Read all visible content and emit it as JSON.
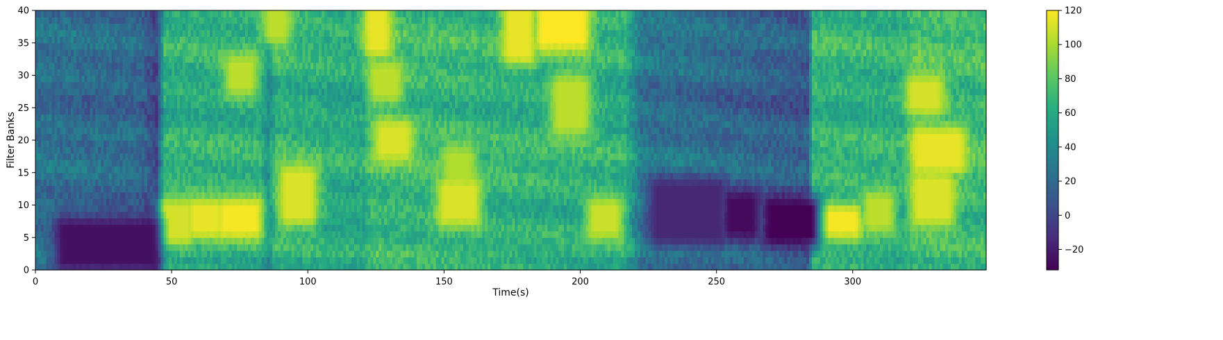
{
  "chart_data": [
    {
      "type": "heatmap",
      "title": "",
      "xlabel": "Time(s)",
      "ylabel": "Filter Banks",
      "xlim": [
        0,
        349
      ],
      "ylim": [
        0,
        40
      ],
      "x_ticks": [
        0,
        50,
        100,
        150,
        200,
        250,
        300
      ],
      "y_ticks": [
        0,
        5,
        10,
        15,
        20,
        25,
        30,
        35,
        40
      ],
      "n_frames": 349,
      "n_filters": 40,
      "colormap": "viridis",
      "value_range": [
        -32,
        120
      ],
      "frame_energy_profile": [
        {
          "t": 0,
          "level": -0.3
        },
        {
          "t": 38,
          "level": -0.4
        },
        {
          "t": 44,
          "level": -0.9
        },
        {
          "t": 47,
          "level": 0.7
        },
        {
          "t": 82,
          "level": 0.7
        },
        {
          "t": 85,
          "level": 0.2
        },
        {
          "t": 88,
          "level": 0.8
        },
        {
          "t": 120,
          "level": 0.6
        },
        {
          "t": 123,
          "level": 0.9
        },
        {
          "t": 216,
          "level": 0.7
        },
        {
          "t": 222,
          "level": -0.2
        },
        {
          "t": 283,
          "level": -0.6
        },
        {
          "t": 285,
          "level": 0.8
        },
        {
          "t": 318,
          "level": 0.7
        },
        {
          "t": 322,
          "level": 0.95
        },
        {
          "t": 349,
          "level": 0.9
        }
      ],
      "hot_regions": [
        {
          "t": [
            48,
            55
          ],
          "filter": [
            5,
            9
          ],
          "value": 110
        },
        {
          "t": [
            58,
            66
          ],
          "filter": [
            6,
            9
          ],
          "value": 115
        },
        {
          "t": [
            69,
            80
          ],
          "filter": [
            6,
            9
          ],
          "value": 118
        },
        {
          "t": [
            72,
            78
          ],
          "filter": [
            28,
            31
          ],
          "value": 105
        },
        {
          "t": [
            92,
            100
          ],
          "filter": [
            8,
            14
          ],
          "value": 112
        },
        {
          "t": [
            86,
            90
          ],
          "filter": [
            36,
            39
          ],
          "value": 105
        },
        {
          "t": [
            123,
            127
          ],
          "filter": [
            34,
            40
          ],
          "value": 115
        },
        {
          "t": [
            125,
            131
          ],
          "filter": [
            27,
            30
          ],
          "value": 105
        },
        {
          "t": [
            127,
            135
          ],
          "filter": [
            18,
            21
          ],
          "value": 112
        },
        {
          "t": [
            150,
            160
          ],
          "filter": [
            8,
            12
          ],
          "value": 112
        },
        {
          "t": [
            152,
            158
          ],
          "filter": [
            14,
            17
          ],
          "value": 102
        },
        {
          "t": [
            174,
            180
          ],
          "filter": [
            33,
            40
          ],
          "value": 115
        },
        {
          "t": [
            186,
            200
          ],
          "filter": [
            35,
            40
          ],
          "value": 120
        },
        {
          "t": [
            192,
            200
          ],
          "filter": [
            22,
            28
          ],
          "value": 105
        },
        {
          "t": [
            205,
            212
          ],
          "filter": [
            6,
            9
          ],
          "value": 108
        },
        {
          "t": [
            286,
            300
          ],
          "filter": [
            6,
            8
          ],
          "value": 118
        },
        {
          "t": [
            306,
            312
          ],
          "filter": [
            7,
            10
          ],
          "value": 105
        },
        {
          "t": [
            324,
            338
          ],
          "filter": [
            16,
            20
          ],
          "value": 115
        },
        {
          "t": [
            324,
            334
          ],
          "filter": [
            8,
            13
          ],
          "value": 112
        },
        {
          "t": [
            322,
            330
          ],
          "filter": [
            25,
            28
          ],
          "value": 110
        }
      ],
      "cold_regions": [
        {
          "t": [
            10,
            42
          ],
          "filter": [
            1,
            6
          ],
          "value": -25
        },
        {
          "t": [
            255,
            262
          ],
          "filter": [
            6,
            10
          ],
          "value": -28
        },
        {
          "t": [
            270,
            284
          ],
          "filter": [
            5,
            9
          ],
          "value": -32
        },
        {
          "t": [
            228,
            250
          ],
          "filter": [
            5,
            12
          ],
          "value": -15
        }
      ],
      "colorbar": {
        "ticks": [
          -20,
          0,
          20,
          40,
          60,
          80,
          100,
          120
        ]
      }
    }
  ]
}
